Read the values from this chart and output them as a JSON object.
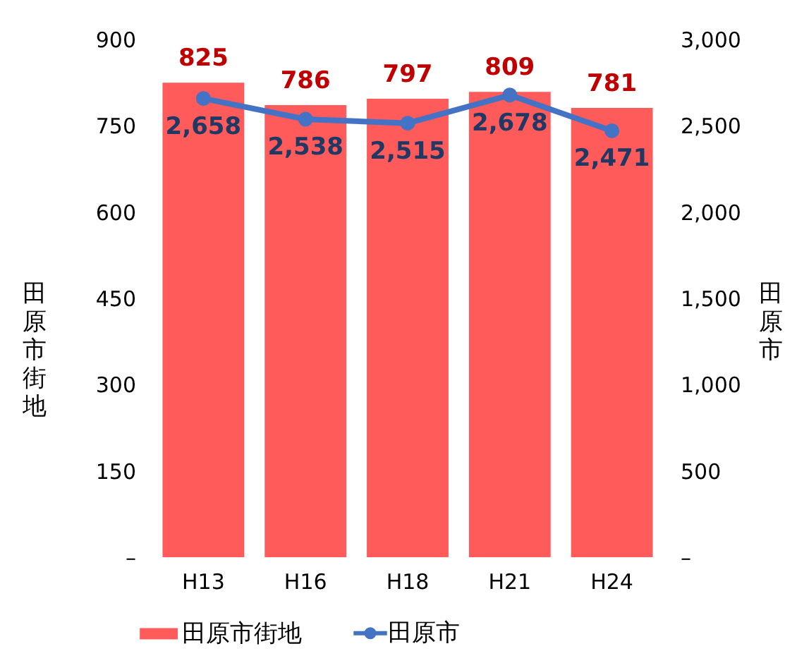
{
  "chart_data": {
    "type": "bar",
    "ylabel": "田原市街地",
    "y2label": "田原市",
    "categories": [
      "H13",
      "H16",
      "H18",
      "H21",
      "H24"
    ],
    "series": [
      {
        "name": "田原市街地",
        "color": "#ff5b5b",
        "values": [
          825,
          786,
          797,
          809,
          781
        ],
        "value_labels": [
          "825",
          "786",
          "797",
          "809",
          "781"
        ]
      },
      {
        "name": "田原市",
        "type": "line",
        "axis": "y2",
        "color": "#4472c4",
        "values": [
          2658,
          2538,
          2515,
          2678,
          2471
        ],
        "value_labels": [
          "2,658",
          "2,538",
          "2,515",
          "2,678",
          "2,471"
        ]
      }
    ],
    "ylim": [
      0,
      900
    ],
    "yticks": [
      {
        "value": 0,
        "label": "–"
      },
      150,
      300,
      450,
      600,
      750,
      900
    ],
    "y2lim": [
      0,
      3000
    ],
    "y2ticks": [
      {
        "value": 0,
        "label": "–"
      },
      {
        "value": 500,
        "label": "500"
      },
      {
        "value": 1000,
        "label": "1,000"
      },
      {
        "value": 1500,
        "label": "1,500"
      },
      {
        "value": 2000,
        "label": "2,000"
      },
      {
        "value": 2500,
        "label": "2,500"
      },
      {
        "value": 3000,
        "label": "3,000"
      }
    ],
    "legend": "bottom",
    "marker": "circle",
    "line_style": "solid"
  }
}
